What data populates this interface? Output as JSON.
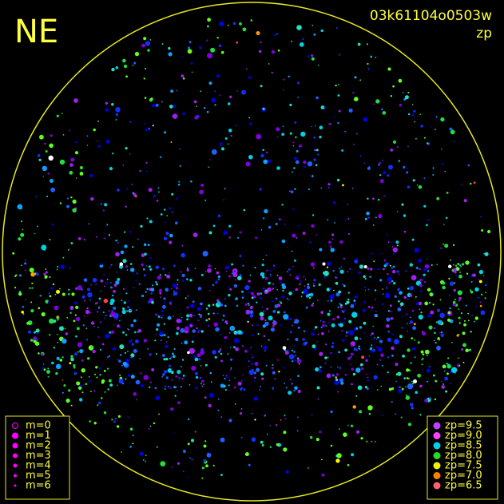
{
  "header": {
    "direction": "NE",
    "frame_id": "03k61104o0503w",
    "mode": "zp"
  },
  "magnitude_legend": [
    "m=0",
    "m=1",
    "m=2",
    "m=3",
    "m=4",
    "m=5",
    "m=6"
  ],
  "zp_legend": [
    "zp=9.5",
    "zp=9.0",
    "zp=8.5",
    "zp=8.0",
    "zp=7.5",
    "zp=7.0",
    "zp=6.5"
  ]
}
